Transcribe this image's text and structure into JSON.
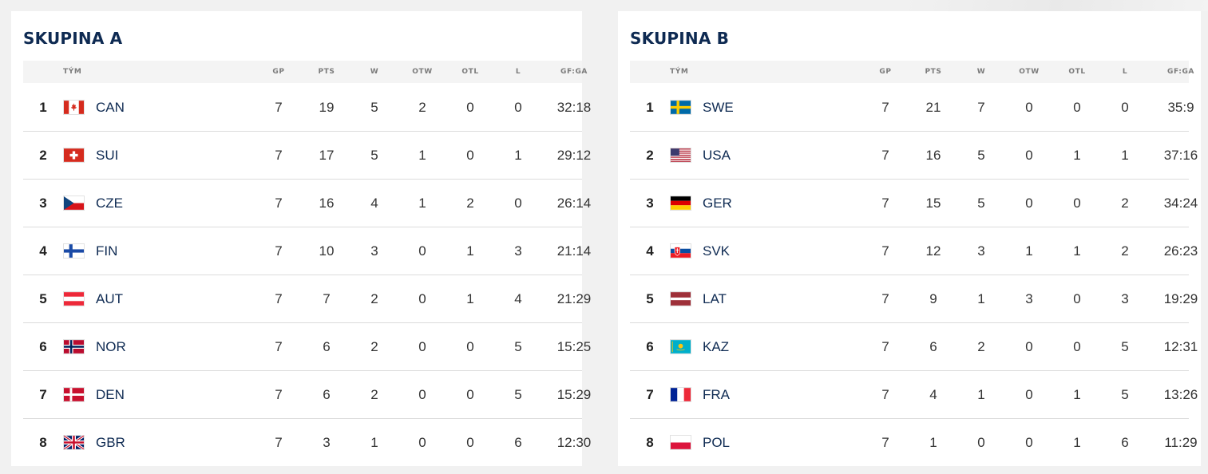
{
  "columns": {
    "team": "TÝM",
    "gp": "GP",
    "pts": "PTS",
    "w": "W",
    "otw": "OTW",
    "otl": "OTL",
    "l": "L",
    "gfga": "GF:GA"
  },
  "groups": [
    {
      "title": "SKUPINA A",
      "rows": [
        {
          "rank": "1",
          "flag": "flag-canada-icon",
          "team": "CAN",
          "gp": "7",
          "pts": "19",
          "w": "5",
          "otw": "2",
          "otl": "0",
          "l": "0",
          "gfga": "32:18"
        },
        {
          "rank": "2",
          "flag": "flag-switzerland-icon",
          "team": "SUI",
          "gp": "7",
          "pts": "17",
          "w": "5",
          "otw": "1",
          "otl": "0",
          "l": "1",
          "gfga": "29:12"
        },
        {
          "rank": "3",
          "flag": "flag-czechia-icon",
          "team": "CZE",
          "gp": "7",
          "pts": "16",
          "w": "4",
          "otw": "1",
          "otl": "2",
          "l": "0",
          "gfga": "26:14"
        },
        {
          "rank": "4",
          "flag": "flag-finland-icon",
          "team": "FIN",
          "gp": "7",
          "pts": "10",
          "w": "3",
          "otw": "0",
          "otl": "1",
          "l": "3",
          "gfga": "21:14"
        },
        {
          "rank": "5",
          "flag": "flag-austria-icon",
          "team": "AUT",
          "gp": "7",
          "pts": "7",
          "w": "2",
          "otw": "0",
          "otl": "1",
          "l": "4",
          "gfga": "21:29"
        },
        {
          "rank": "6",
          "flag": "flag-norway-icon",
          "team": "NOR",
          "gp": "7",
          "pts": "6",
          "w": "2",
          "otw": "0",
          "otl": "0",
          "l": "5",
          "gfga": "15:25"
        },
        {
          "rank": "7",
          "flag": "flag-denmark-icon",
          "team": "DEN",
          "gp": "7",
          "pts": "6",
          "w": "2",
          "otw": "0",
          "otl": "0",
          "l": "5",
          "gfga": "15:29"
        },
        {
          "rank": "8",
          "flag": "flag-great-britain-icon",
          "team": "GBR",
          "gp": "7",
          "pts": "3",
          "w": "1",
          "otw": "0",
          "otl": "0",
          "l": "6",
          "gfga": "12:30"
        }
      ]
    },
    {
      "title": "SKUPINA B",
      "rows": [
        {
          "rank": "1",
          "flag": "flag-sweden-icon",
          "team": "SWE",
          "gp": "7",
          "pts": "21",
          "w": "7",
          "otw": "0",
          "otl": "0",
          "l": "0",
          "gfga": "35:9"
        },
        {
          "rank": "2",
          "flag": "flag-usa-icon",
          "team": "USA",
          "gp": "7",
          "pts": "16",
          "w": "5",
          "otw": "0",
          "otl": "1",
          "l": "1",
          "gfga": "37:16"
        },
        {
          "rank": "3",
          "flag": "flag-germany-icon",
          "team": "GER",
          "gp": "7",
          "pts": "15",
          "w": "5",
          "otw": "0",
          "otl": "0",
          "l": "2",
          "gfga": "34:24"
        },
        {
          "rank": "4",
          "flag": "flag-slovakia-icon",
          "team": "SVK",
          "gp": "7",
          "pts": "12",
          "w": "3",
          "otw": "1",
          "otl": "1",
          "l": "2",
          "gfga": "26:23"
        },
        {
          "rank": "5",
          "flag": "flag-latvia-icon",
          "team": "LAT",
          "gp": "7",
          "pts": "9",
          "w": "1",
          "otw": "3",
          "otl": "0",
          "l": "3",
          "gfga": "19:29"
        },
        {
          "rank": "6",
          "flag": "flag-kazakhstan-icon",
          "team": "KAZ",
          "gp": "7",
          "pts": "6",
          "w": "2",
          "otw": "0",
          "otl": "0",
          "l": "5",
          "gfga": "12:31"
        },
        {
          "rank": "7",
          "flag": "flag-france-icon",
          "team": "FRA",
          "gp": "7",
          "pts": "4",
          "w": "1",
          "otw": "0",
          "otl": "1",
          "l": "5",
          "gfga": "13:26"
        },
        {
          "rank": "8",
          "flag": "flag-poland-icon",
          "team": "POL",
          "gp": "7",
          "pts": "1",
          "w": "0",
          "otw": "0",
          "otl": "1",
          "l": "6",
          "gfga": "11:29"
        }
      ]
    }
  ]
}
